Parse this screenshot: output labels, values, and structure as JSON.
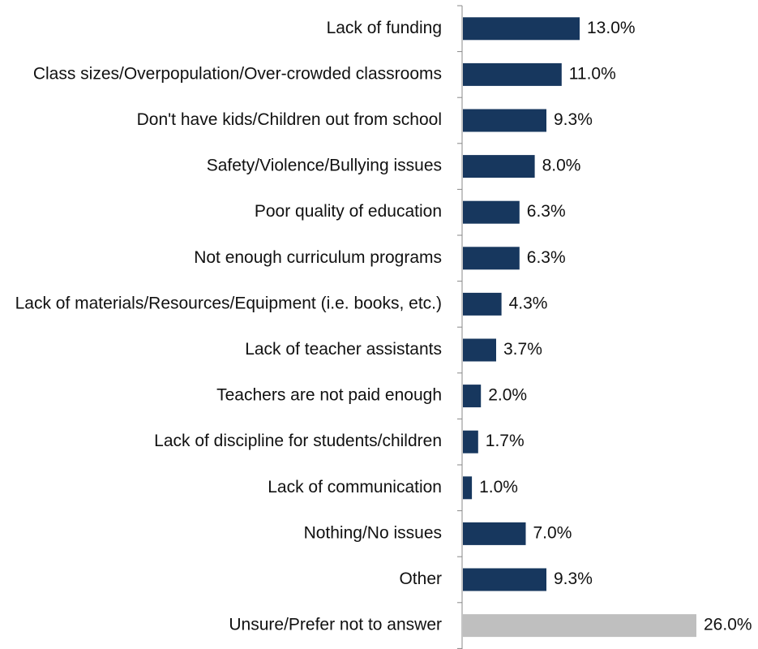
{
  "chart_data": {
    "type": "bar",
    "orientation": "horizontal",
    "categories": [
      "Lack of funding",
      "Class sizes/Overpopulation/Over-crowded classrooms",
      "Don't have kids/Children out from school",
      "Safety/Violence/Bullying issues",
      "Poor quality of education",
      "Not enough curriculum programs",
      "Lack of materials/Resources/Equipment (i.e. books, etc.)",
      "Lack of teacher assistants",
      "Teachers are not paid enough",
      "Lack of discipline for students/children",
      "Lack of communication",
      "Nothing/No issues",
      "Other",
      "Unsure/Prefer not to answer"
    ],
    "values": [
      13.0,
      11.0,
      9.3,
      8.0,
      6.3,
      6.3,
      4.3,
      3.7,
      2.0,
      1.7,
      1.0,
      7.0,
      9.3,
      26.0
    ],
    "value_labels": [
      "13.0%",
      "11.0%",
      "9.3%",
      "8.0%",
      "6.3%",
      "6.3%",
      "4.3%",
      "3.7%",
      "2.0%",
      "1.7%",
      "1.0%",
      "7.0%",
      "9.3%",
      "26.0%"
    ],
    "bar_colors": [
      "#17375e",
      "#17375e",
      "#17375e",
      "#17375e",
      "#17375e",
      "#17375e",
      "#17375e",
      "#17375e",
      "#17375e",
      "#17375e",
      "#17375e",
      "#17375e",
      "#17375e",
      "#bfbfbf"
    ],
    "xlim": [
      0,
      26
    ],
    "grid": false,
    "legend": "none"
  }
}
